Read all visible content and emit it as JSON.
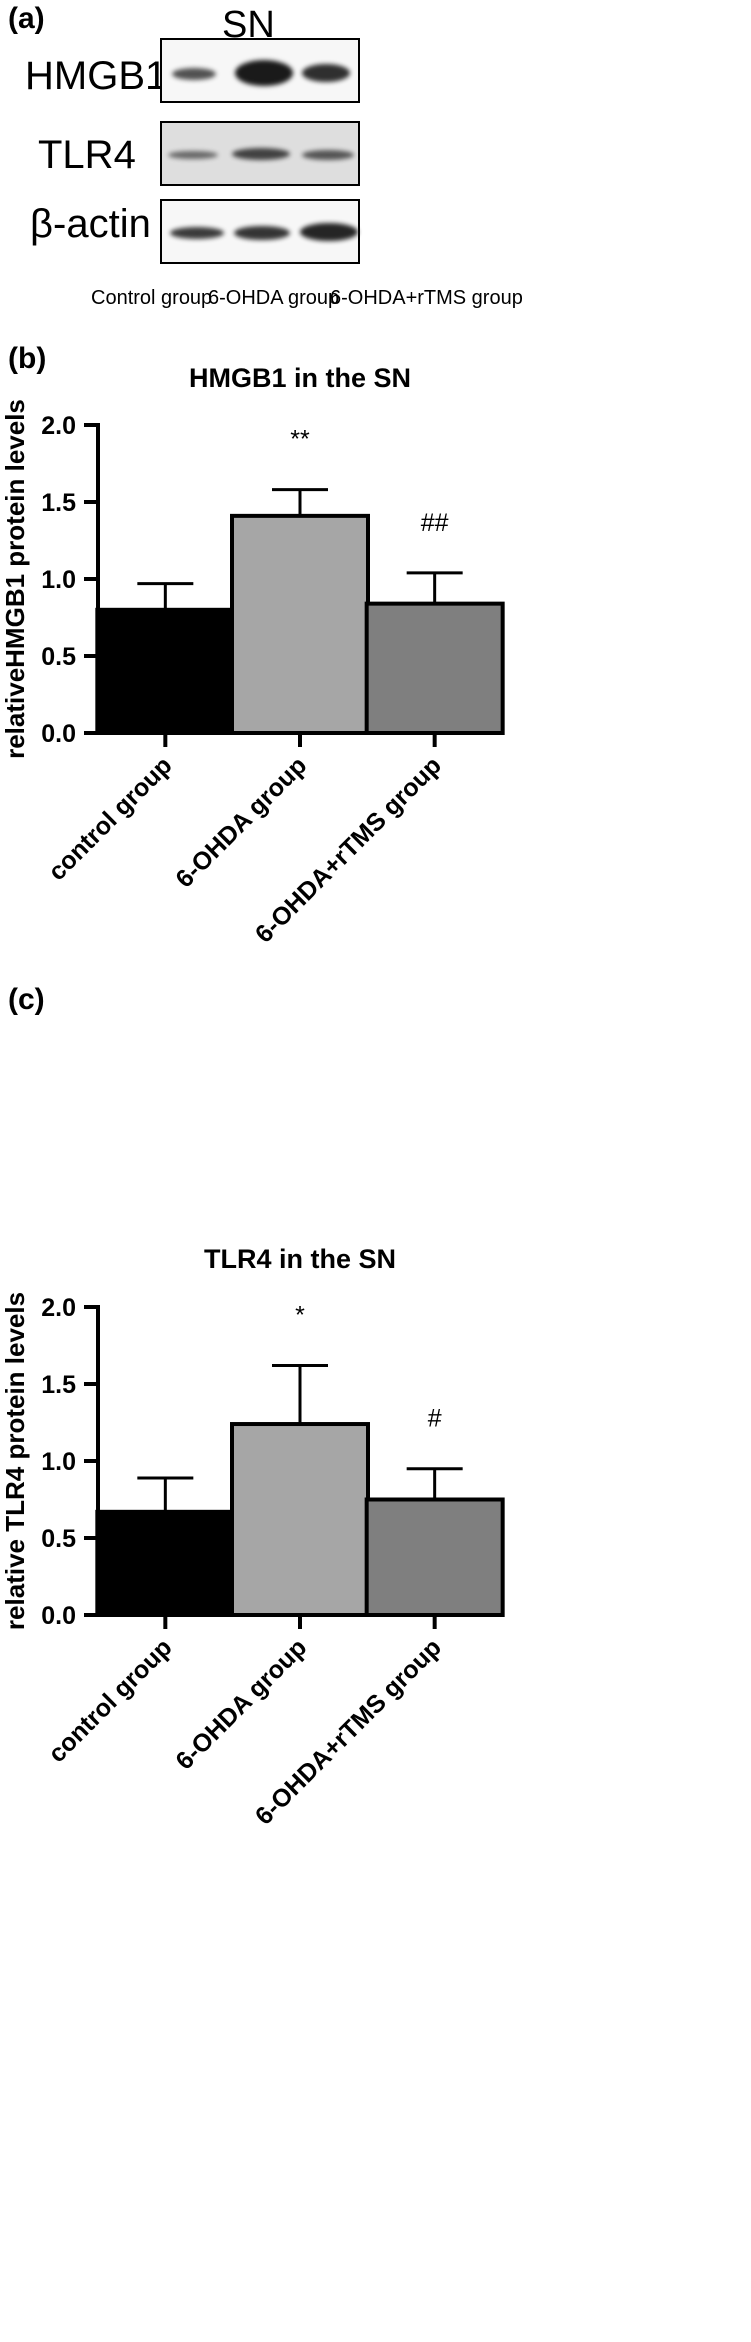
{
  "panel_a": {
    "label": "(a)",
    "title": "SN",
    "rows": [
      {
        "name": "HMGB1",
        "band_strength": [
          0.45,
          1.0,
          0.75
        ]
      },
      {
        "name": "TLR4",
        "band_strength": [
          0.35,
          0.55,
          0.45
        ]
      },
      {
        "name": "β-actin",
        "band_strength": [
          0.8,
          0.85,
          0.95
        ]
      }
    ],
    "lanes": [
      "Control group",
      "6-OHDA group",
      "6-OHDA+rTMS group"
    ]
  },
  "chart_data": [
    {
      "panel_label": "(b)",
      "type": "bar",
      "title": "HMGB1 in the SN",
      "ylabel": "relativeHMGB1 protein levels",
      "xlabel": "",
      "ylim": [
        0,
        2.0
      ],
      "yticks": [
        0.0,
        0.5,
        1.0,
        1.5,
        2.0
      ],
      "ytick_labels": [
        "0.0",
        "0.5",
        "1.0",
        "1.5",
        "2.0"
      ],
      "categories": [
        "control group",
        "6-OHDA group",
        "6-OHDA+rTMS group"
      ],
      "values": [
        0.8,
        1.41,
        0.84
      ],
      "errors": [
        0.17,
        0.17,
        0.2
      ],
      "annotations": [
        "",
        "**",
        "##"
      ],
      "colors": [
        "#000000",
        "#a6a6a6",
        "#7f7f7f"
      ],
      "grid": false
    },
    {
      "panel_label": "(c)",
      "type": "bar",
      "title": "TLR4 in the SN",
      "ylabel": "relative TLR4 protein levels",
      "xlabel": "",
      "ylim": [
        0,
        2.0
      ],
      "yticks": [
        0.0,
        0.5,
        1.0,
        1.5,
        2.0
      ],
      "ytick_labels": [
        "0.0",
        "0.5",
        "1.0",
        "1.5",
        "2.0"
      ],
      "categories": [
        "control group",
        "6-OHDA group",
        "6-OHDA+rTMS group"
      ],
      "values": [
        0.67,
        1.24,
        0.75
      ],
      "errors": [
        0.22,
        0.38,
        0.2
      ],
      "annotations": [
        "",
        "*",
        "#"
      ],
      "colors": [
        "#000000",
        "#a6a6a6",
        "#7f7f7f"
      ],
      "grid": false
    }
  ]
}
